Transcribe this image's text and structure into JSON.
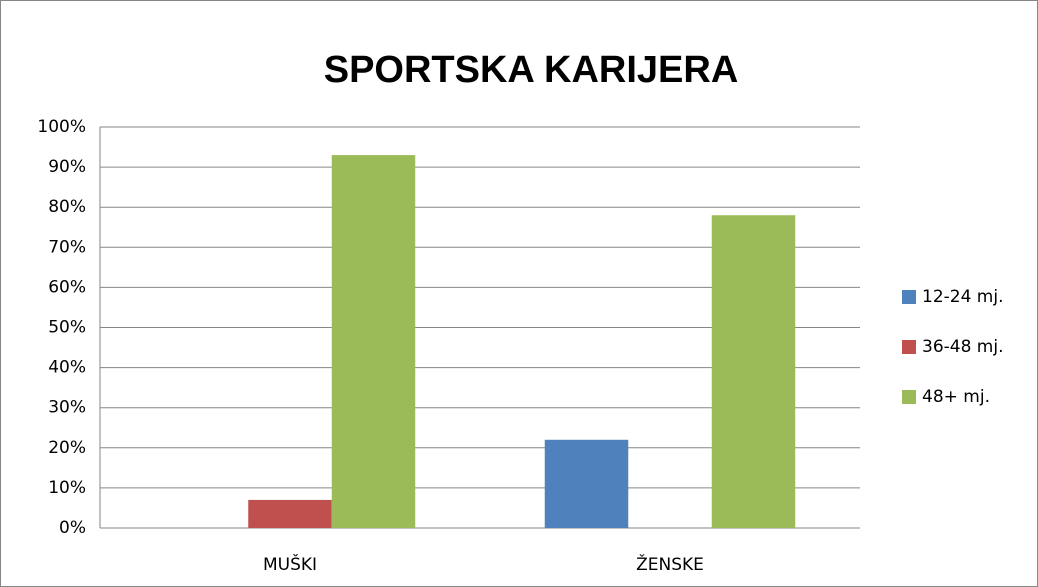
{
  "chart_data": {
    "type": "bar",
    "title": "SPORTSKA KARIJERA",
    "categories": [
      "MUŠKI",
      "ŽENSKE"
    ],
    "series": [
      {
        "name": "12-24 mj.",
        "color": "#4f81bd",
        "values": [
          0,
          22
        ]
      },
      {
        "name": "36-48 mj.",
        "color": "#c0504d",
        "values": [
          7,
          0
        ]
      },
      {
        "name": "48+ mj.",
        "color": "#9bbb59",
        "values": [
          93,
          78
        ]
      }
    ],
    "ylim": [
      0,
      100
    ],
    "yticks": [
      {
        "value": 0,
        "label": "0%"
      },
      {
        "value": 10,
        "label": "10%"
      },
      {
        "value": 20,
        "label": "20%"
      },
      {
        "value": 30,
        "label": "30%"
      },
      {
        "value": 40,
        "label": "40%"
      },
      {
        "value": 50,
        "label": "50%"
      },
      {
        "value": 60,
        "label": "60%"
      },
      {
        "value": 70,
        "label": "70%"
      },
      {
        "value": 80,
        "label": "80%"
      },
      {
        "value": 90,
        "label": "90%"
      },
      {
        "value": 100,
        "label": "100%"
      }
    ],
    "grid": true,
    "legend": "right"
  }
}
